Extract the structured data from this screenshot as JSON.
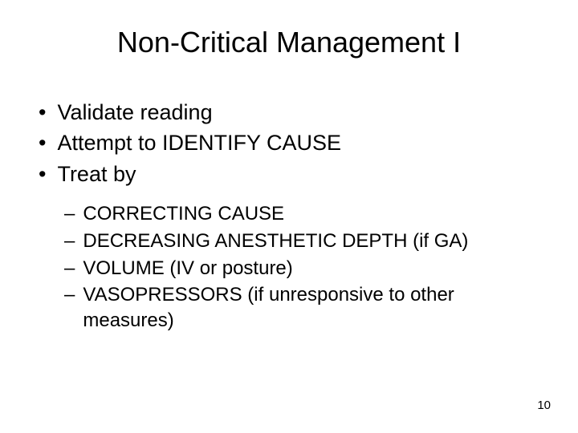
{
  "title": "Non-Critical Management I",
  "bullets": [
    {
      "text": "Validate reading"
    },
    {
      "text": "Attempt to IDENTIFY CAUSE"
    },
    {
      "text": "Treat by"
    }
  ],
  "sub_bullets": [
    {
      "text": "CORRECTING CAUSE"
    },
    {
      "text": "DECREASING ANESTHETIC DEPTH (if GA)"
    },
    {
      "text": "VOLUME (IV or posture)"
    },
    {
      "text": "VASOPRESSORS (if unresponsive to other measures)"
    }
  ],
  "page_number": "10",
  "colors": {
    "background": "#ffffff",
    "text": "#000000"
  },
  "typography": {
    "title_fontsize": 36,
    "bullet_fontsize": 27,
    "sub_bullet_fontsize": 24,
    "pagenum_fontsize": 15,
    "font_family": "Arial"
  },
  "markers": {
    "bullet": "•",
    "sub_bullet": "–"
  }
}
